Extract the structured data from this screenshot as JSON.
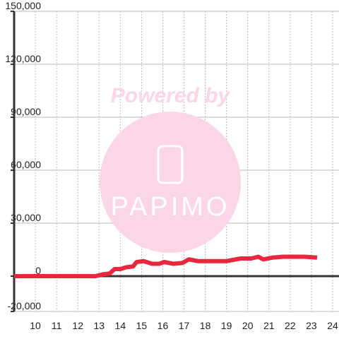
{
  "chart_data": {
    "type": "line",
    "watermark": {
      "title": "Powered by",
      "brand": "PAPIMO"
    },
    "x": [
      9.0,
      12.83,
      13.17,
      13.5,
      13.73,
      14.0,
      14.27,
      14.6,
      14.77,
      15.1,
      15.5,
      15.83,
      16.07,
      16.5,
      16.93,
      17.23,
      17.67,
      19.0,
      19.67,
      20.17,
      20.5,
      20.73,
      21.17,
      21.67,
      22.67,
      23.27
    ],
    "series": [
      {
        "color": "#e8273f",
        "values": [
          0,
          0,
          1000,
          1500,
          4000,
          4000,
          5000,
          5500,
          8000,
          8500,
          7000,
          7000,
          8000,
          7000,
          7500,
          9500,
          8500,
          8500,
          10000,
          10000,
          11000,
          9500,
          10500,
          11000,
          11000,
          10500
        ]
      }
    ],
    "xlim": [
      9.0,
      24.3
    ],
    "xticks": [
      10,
      11,
      12,
      13,
      14,
      15,
      16,
      17,
      18,
      19,
      20,
      21,
      22,
      23,
      24
    ],
    "ylim": [
      -20000,
      150000
    ],
    "yticks": [
      {
        "value": -20000,
        "label": "-20,000"
      },
      0,
      {
        "value": 30000,
        "label": "30,000"
      },
      {
        "value": 60000,
        "label": "60,000"
      },
      {
        "value": 90000,
        "label": "90,000"
      },
      {
        "value": 120000,
        "label": "120,000"
      },
      {
        "value": 150000,
        "label": "150,000"
      }
    ],
    "grid": true
  }
}
